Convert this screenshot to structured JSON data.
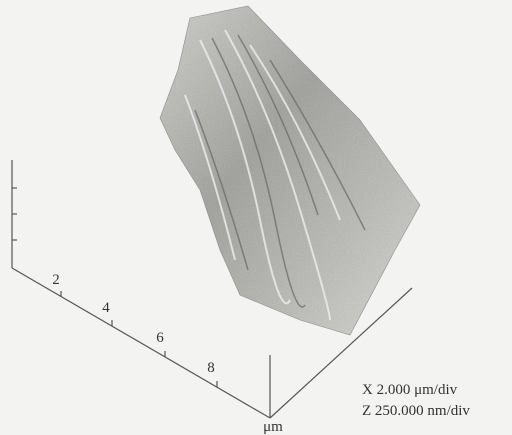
{
  "axis": {
    "ticks": [
      "2",
      "4",
      "6",
      "8"
    ],
    "unit": "μm"
  },
  "annotations": [
    "X 2.000 μm/div",
    "Z 250.000 nm/div"
  ]
}
